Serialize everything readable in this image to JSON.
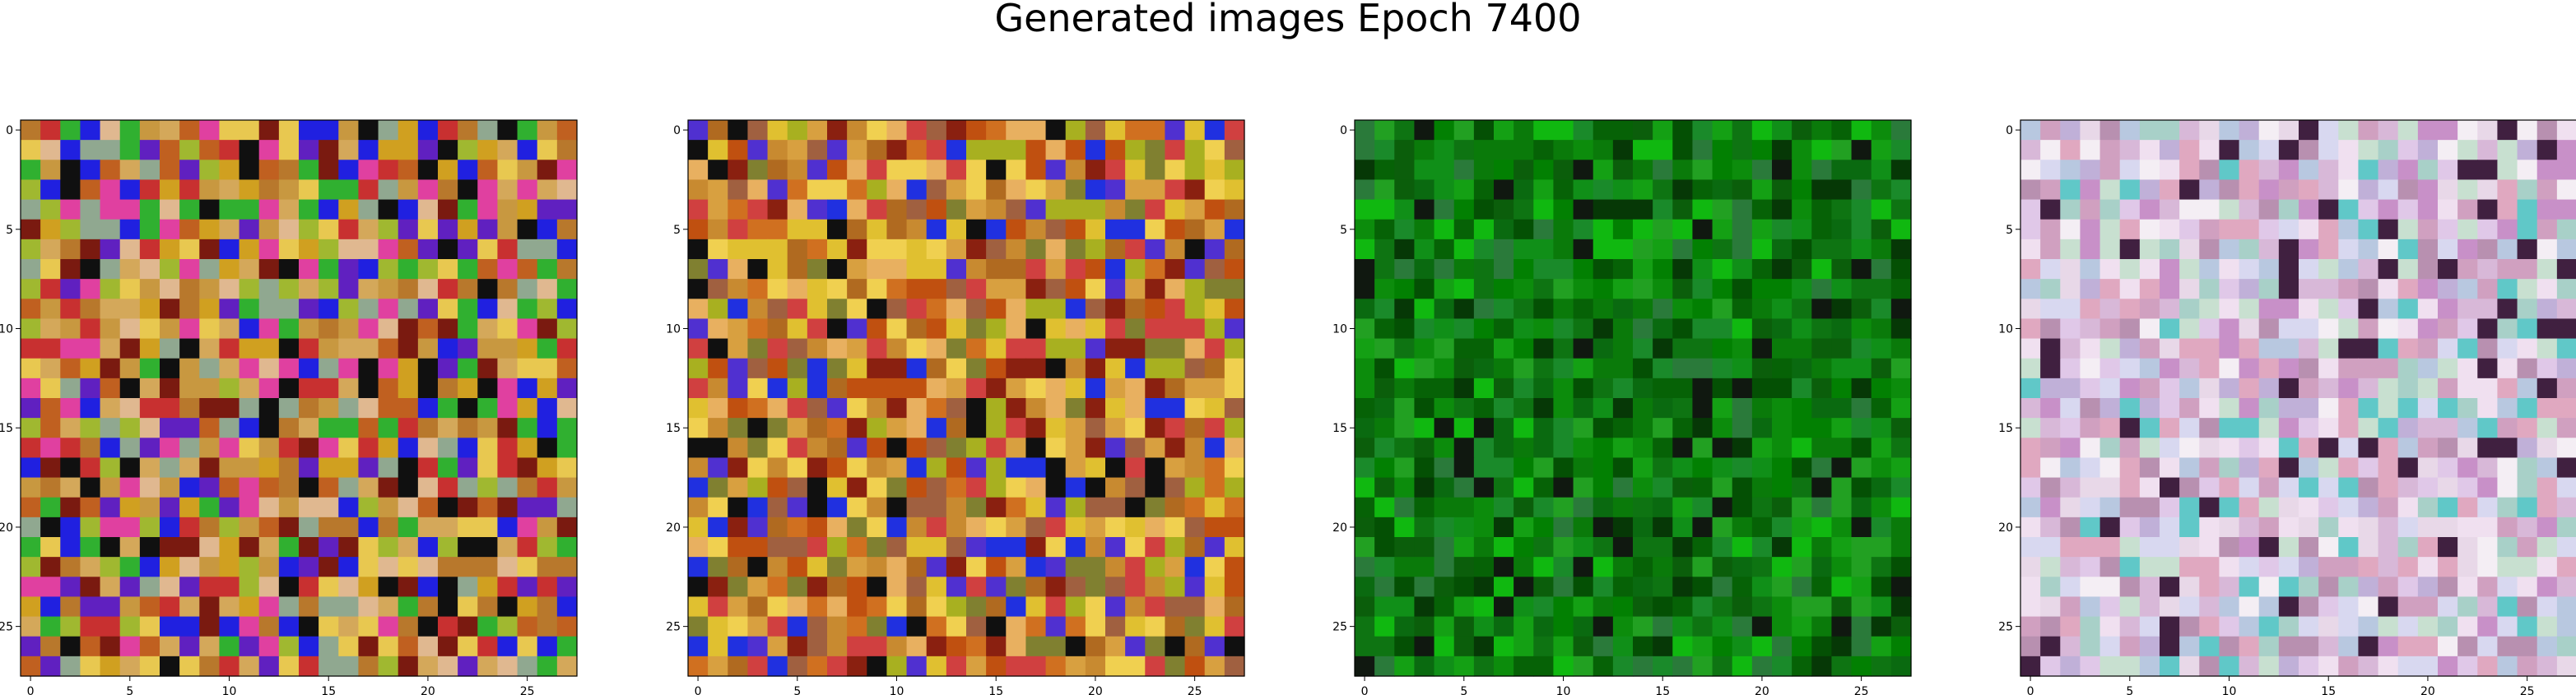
{
  "title": "Generated images Epoch 7400",
  "chart_data": {
    "type": "heatmap",
    "title": "Generated images Epoch 7400",
    "grid": false,
    "panels": [
      {
        "size": 28,
        "xticks": [
          "0",
          "5",
          "10",
          "15",
          "20",
          "25"
        ],
        "yticks": [
          "0",
          "5",
          "10",
          "15",
          "20",
          "25"
        ],
        "tick_values": [
          0,
          5,
          10,
          15,
          20,
          25
        ],
        "palette": [
          "#c89840",
          "#b8782c",
          "#d4a85a",
          "#e0b890",
          "#a0b830",
          "#e8c850",
          "#7a1a10",
          "#c83030",
          "#6020c0",
          "#2020e0",
          "#30b030",
          "#e040a0",
          "#101010",
          "#d0a020",
          "#90a890",
          "#c06020"
        ]
      },
      {
        "size": 28,
        "xticks": [
          "0",
          "5",
          "10",
          "15",
          "20",
          "25"
        ],
        "yticks": [
          "0",
          "5",
          "10",
          "15",
          "20",
          "25"
        ],
        "tick_values": [
          0,
          5,
          10,
          15,
          20,
          25
        ],
        "palette": [
          "#c88a30",
          "#b06a20",
          "#d8a040",
          "#a8b020",
          "#8a2010",
          "#e0c030",
          "#d04040",
          "#5030d0",
          "#2030e0",
          "#101010",
          "#e8b060",
          "#c05010",
          "#a06040",
          "#f0d050",
          "#808030",
          "#d07020"
        ]
      },
      {
        "size": 28,
        "xticks": [
          "0",
          "5",
          "10",
          "15",
          "20",
          "25"
        ],
        "yticks": [
          "0",
          "5",
          "10",
          "15",
          "20",
          "25"
        ],
        "tick_values": [
          0,
          5,
          10,
          15,
          20,
          25
        ],
        "palette": [
          "#0a7a0a",
          "#0c8c0c",
          "#066206",
          "#108f18",
          "#045004",
          "#14a014",
          "#0a6a10",
          "#1a8a2a",
          "#028002",
          "#0e7412",
          "#063806",
          "#22a022",
          "#0b5e0b",
          "#2a7a3a",
          "#101810",
          "#10b810"
        ]
      },
      {
        "size": 28,
        "xticks": [
          "0",
          "5",
          "10",
          "15",
          "20",
          "25"
        ],
        "yticks": [
          "0",
          "5",
          "10",
          "15",
          "20",
          "25"
        ],
        "tick_values": [
          0,
          5,
          10,
          15,
          20,
          25
        ],
        "palette": [
          "#d8b8d8",
          "#e8d8e8",
          "#c890c8",
          "#b8c8e0",
          "#f0e0f0",
          "#d0a0c0",
          "#a8d0c8",
          "#e0c8e8",
          "#c0b0d8",
          "#f4eef4",
          "#b890b0",
          "#d8d8f0",
          "#60c8c8",
          "#402040",
          "#e0a8c0",
          "#c8e0d0"
        ]
      }
    ]
  }
}
